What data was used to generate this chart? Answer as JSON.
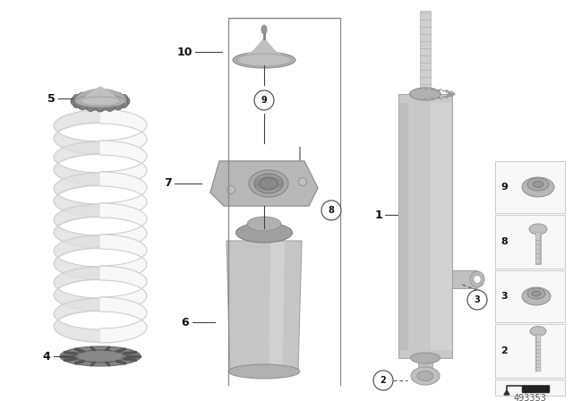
{
  "bg_color": "#ffffff",
  "part_number": "493353",
  "lc": "#444444",
  "label_color": "#111111",
  "circle_ec": "#444444",
  "circle_fc": "#ffffff",
  "gray1": "#c8c8c8",
  "gray2": "#b0b0b0",
  "gray3": "#989898",
  "gray4": "#d8d8d8",
  "spring_color": "#f0f0f0",
  "spring_edge": "#cccccc"
}
